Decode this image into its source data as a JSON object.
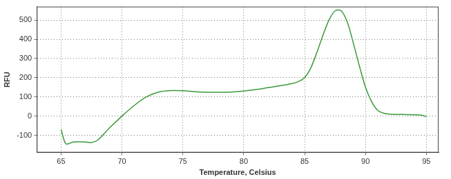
{
  "chart_data": {
    "type": "line",
    "x_label": "Temperature, Celsius",
    "y_label": "RFU",
    "x": [
      65,
      65.4,
      66,
      67,
      67.5,
      68,
      69,
      70,
      71,
      72,
      73,
      74,
      75,
      76,
      77,
      78,
      79,
      80,
      81,
      82,
      83,
      84,
      84.5,
      85,
      85.5,
      86,
      86.5,
      87,
      87.5,
      88,
      88.5,
      89,
      89.5,
      90,
      90.5,
      91,
      91.5,
      92,
      93,
      94,
      94.5,
      95
    ],
    "values": [
      -70,
      -145,
      -135,
      -135,
      -138,
      -125,
      -60,
      0,
      55,
      100,
      125,
      133,
      132,
      127,
      124,
      124,
      125,
      130,
      138,
      148,
      158,
      170,
      180,
      200,
      250,
      330,
      420,
      500,
      548,
      548,
      490,
      380,
      260,
      150,
      75,
      30,
      15,
      10,
      8,
      7,
      6,
      -3
    ],
    "color": "#3a9a3a",
    "xlim": [
      63,
      96
    ],
    "xticks": [
      65,
      70,
      75,
      80,
      85,
      90,
      95
    ],
    "ylim": [
      -190,
      570
    ],
    "yticks": [
      -100,
      0,
      100,
      200,
      300,
      400,
      500
    ],
    "grid": true
  }
}
